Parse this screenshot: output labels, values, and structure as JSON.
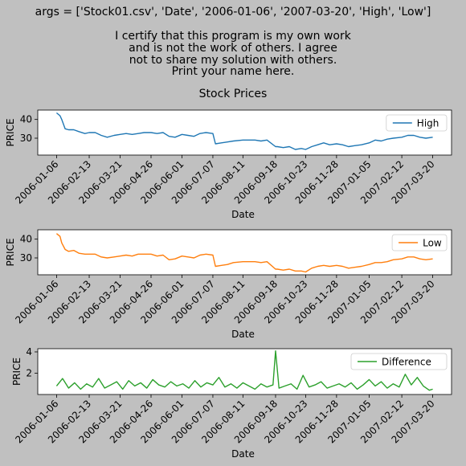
{
  "header": {
    "args_line": "args = ['Stock01.csv', 'Date', '2006-01-06', '2007-03-20', 'High', 'Low']",
    "certify_lines": [
      "I certify that this program is my own work",
      "and is not the work of others. I agree",
      "not to share my solution with others.",
      "Print your name here."
    ],
    "suptitle": "Stock Prices"
  },
  "colors": {
    "high": "#1f77b4",
    "low": "#ff7f0e",
    "difference": "#2ca02c",
    "background": "#c0c0c0"
  },
  "chart_data": [
    {
      "type": "line",
      "title": "Stock Prices",
      "xlabel": "Date",
      "ylabel": "PRICE",
      "x_range": [
        "2006-01-06",
        "2007-03-20"
      ],
      "x_ticks": [
        "2006-01-06",
        "2006-02-13",
        "2006-03-21",
        "2006-04-26",
        "2006-06-01",
        "2006-07-07",
        "2006-08-11",
        "2006-09-18",
        "2006-10-23",
        "2006-11-28",
        "2007-01-05",
        "2007-02-12",
        "2007-03-20"
      ],
      "y_ticks": [
        30,
        40
      ],
      "ylim": [
        21,
        45
      ],
      "legend": "right",
      "series": [
        {
          "name": "High",
          "x": [
            "2006-01-06",
            "2006-01-10",
            "2006-01-12",
            "2006-01-16",
            "2006-01-20",
            "2006-01-26",
            "2006-02-01",
            "2006-02-08",
            "2006-02-13",
            "2006-02-20",
            "2006-02-27",
            "2006-03-06",
            "2006-03-14",
            "2006-03-21",
            "2006-03-28",
            "2006-04-04",
            "2006-04-11",
            "2006-04-18",
            "2006-04-26",
            "2006-05-03",
            "2006-05-10",
            "2006-05-17",
            "2006-05-24",
            "2006-06-01",
            "2006-06-08",
            "2006-06-15",
            "2006-06-22",
            "2006-06-29",
            "2006-07-07",
            "2006-07-10",
            "2006-07-17",
            "2006-07-24",
            "2006-07-31",
            "2006-08-11",
            "2006-08-18",
            "2006-08-25",
            "2006-09-01",
            "2006-09-08",
            "2006-09-18",
            "2006-09-20",
            "2006-09-27",
            "2006-10-04",
            "2006-10-11",
            "2006-10-18",
            "2006-10-23",
            "2006-10-30",
            "2006-11-06",
            "2006-11-13",
            "2006-11-20",
            "2006-11-28",
            "2006-12-05",
            "2006-12-12",
            "2006-12-19",
            "2006-12-27",
            "2007-01-05",
            "2007-01-12",
            "2007-01-19",
            "2007-01-26",
            "2007-02-02",
            "2007-02-12",
            "2007-02-19",
            "2007-02-26",
            "2007-03-05",
            "2007-03-12",
            "2007-03-20"
          ],
          "values": [
            43.5,
            42,
            40,
            35,
            34.5,
            34.5,
            33.5,
            32.5,
            33,
            33,
            31.5,
            30.5,
            31.5,
            32,
            32.5,
            32,
            32.5,
            33,
            33,
            32.5,
            33,
            31,
            30.5,
            32,
            31.5,
            31,
            32.5,
            33,
            32.5,
            27,
            27.5,
            28,
            28.5,
            29,
            29,
            29,
            28.5,
            29,
            25.5,
            25.5,
            25,
            25.5,
            24,
            24.5,
            24,
            25.5,
            26.5,
            27.5,
            26.5,
            27,
            26.5,
            25.5,
            26,
            26.5,
            27.5,
            29,
            28.5,
            29.5,
            30,
            30.5,
            31.5,
            31.5,
            30.5,
            30,
            30.5
          ]
        }
      ]
    },
    {
      "type": "line",
      "xlabel": "Date",
      "ylabel": "PRICE",
      "x_range": [
        "2006-01-06",
        "2007-03-20"
      ],
      "x_ticks": [
        "2006-01-06",
        "2006-02-13",
        "2006-03-21",
        "2006-04-26",
        "2006-06-01",
        "2006-07-07",
        "2006-08-11",
        "2006-09-18",
        "2006-10-23",
        "2006-11-28",
        "2007-01-05",
        "2007-02-12",
        "2007-03-20"
      ],
      "y_ticks": [
        30,
        40
      ],
      "ylim": [
        21,
        45
      ],
      "legend": "right",
      "series": [
        {
          "name": "Low",
          "x": [
            "2006-01-06",
            "2006-01-10",
            "2006-01-12",
            "2006-01-16",
            "2006-01-20",
            "2006-01-26",
            "2006-02-01",
            "2006-02-08",
            "2006-02-13",
            "2006-02-20",
            "2006-02-27",
            "2006-03-06",
            "2006-03-14",
            "2006-03-21",
            "2006-03-28",
            "2006-04-04",
            "2006-04-11",
            "2006-04-18",
            "2006-04-26",
            "2006-05-03",
            "2006-05-10",
            "2006-05-17",
            "2006-05-24",
            "2006-06-01",
            "2006-06-08",
            "2006-06-15",
            "2006-06-22",
            "2006-06-29",
            "2006-07-07",
            "2006-07-10",
            "2006-07-17",
            "2006-07-24",
            "2006-07-31",
            "2006-08-11",
            "2006-08-18",
            "2006-08-25",
            "2006-09-01",
            "2006-09-08",
            "2006-09-18",
            "2006-09-20",
            "2006-09-27",
            "2006-10-04",
            "2006-10-11",
            "2006-10-18",
            "2006-10-23",
            "2006-10-30",
            "2006-11-06",
            "2006-11-13",
            "2006-11-20",
            "2006-11-28",
            "2006-12-05",
            "2006-12-12",
            "2006-12-19",
            "2006-12-27",
            "2007-01-05",
            "2007-01-12",
            "2007-01-19",
            "2007-01-26",
            "2007-02-02",
            "2007-02-12",
            "2007-02-19",
            "2007-02-26",
            "2007-03-05",
            "2007-03-12",
            "2007-03-20"
          ],
          "values": [
            43,
            41.5,
            38,
            34.5,
            33.5,
            34,
            32.5,
            32,
            32,
            32,
            30.5,
            30,
            30.5,
            31,
            31.5,
            31,
            32,
            32,
            32,
            31,
            31.5,
            29,
            29.5,
            31,
            30.5,
            30,
            31.5,
            32,
            31.5,
            25.5,
            26,
            26.5,
            27.5,
            28,
            28,
            28,
            27.5,
            28,
            24,
            24,
            23.5,
            24,
            23,
            23,
            22.5,
            24.5,
            25.5,
            26,
            25.5,
            26,
            25.5,
            24.5,
            25,
            25.5,
            26.5,
            27.5,
            27.5,
            28,
            29,
            29.5,
            30.5,
            30.5,
            29.5,
            29,
            29.5
          ]
        }
      ]
    },
    {
      "type": "line",
      "xlabel": "Date",
      "ylabel": "PRICE",
      "x_range": [
        "2006-01-06",
        "2007-03-20"
      ],
      "x_ticks": [
        "2006-01-06",
        "2006-02-13",
        "2006-03-21",
        "2006-04-26",
        "2006-06-01",
        "2006-07-07",
        "2006-08-11",
        "2006-09-18",
        "2006-10-23",
        "2006-11-28",
        "2007-01-05",
        "2007-02-12",
        "2007-03-20"
      ],
      "y_ticks": [
        2,
        4
      ],
      "ylim": [
        0,
        4.3
      ],
      "legend": "right",
      "series": [
        {
          "name": "Difference",
          "x": [
            "2006-01-06",
            "2006-01-13",
            "2006-01-20",
            "2006-01-27",
            "2006-02-03",
            "2006-02-10",
            "2006-02-17",
            "2006-02-24",
            "2006-03-03",
            "2006-03-10",
            "2006-03-17",
            "2006-03-24",
            "2006-03-31",
            "2006-04-07",
            "2006-04-14",
            "2006-04-21",
            "2006-04-28",
            "2006-05-05",
            "2006-05-12",
            "2006-05-19",
            "2006-05-26",
            "2006-06-02",
            "2006-06-09",
            "2006-06-16",
            "2006-06-23",
            "2006-06-30",
            "2006-07-07",
            "2006-07-14",
            "2006-07-21",
            "2006-07-28",
            "2006-08-04",
            "2006-08-11",
            "2006-08-18",
            "2006-08-25",
            "2006-09-01",
            "2006-09-08",
            "2006-09-15",
            "2006-09-18",
            "2006-09-22",
            "2006-09-29",
            "2006-10-06",
            "2006-10-13",
            "2006-10-20",
            "2006-10-27",
            "2006-11-03",
            "2006-11-10",
            "2006-11-17",
            "2006-11-24",
            "2006-12-01",
            "2006-12-08",
            "2006-12-15",
            "2006-12-22",
            "2006-12-29",
            "2007-01-05",
            "2007-01-12",
            "2007-01-19",
            "2007-01-26",
            "2007-02-02",
            "2007-02-09",
            "2007-02-16",
            "2007-02-23",
            "2007-03-02",
            "2007-03-09",
            "2007-03-16",
            "2007-03-20"
          ],
          "values": [
            0.8,
            1.5,
            0.6,
            1.1,
            0.5,
            1,
            0.7,
            1.5,
            0.6,
            0.9,
            1.2,
            0.5,
            1.3,
            0.8,
            1.1,
            0.6,
            1.4,
            0.9,
            0.7,
            1.2,
            0.8,
            1,
            0.6,
            1.3,
            0.7,
            1.1,
            0.9,
            1.6,
            0.7,
            1,
            0.6,
            1.1,
            0.8,
            0.5,
            1,
            0.7,
            0.9,
            4.1,
            0.6,
            0.8,
            1,
            0.5,
            1.8,
            0.7,
            0.9,
            1.2,
            0.6,
            0.8,
            1,
            0.7,
            1.1,
            0.5,
            0.9,
            1.4,
            0.8,
            1.2,
            0.6,
            1,
            0.7,
            1.9,
            0.9,
            1.6,
            0.8,
            0.4,
            0.5
          ]
        }
      ]
    }
  ]
}
